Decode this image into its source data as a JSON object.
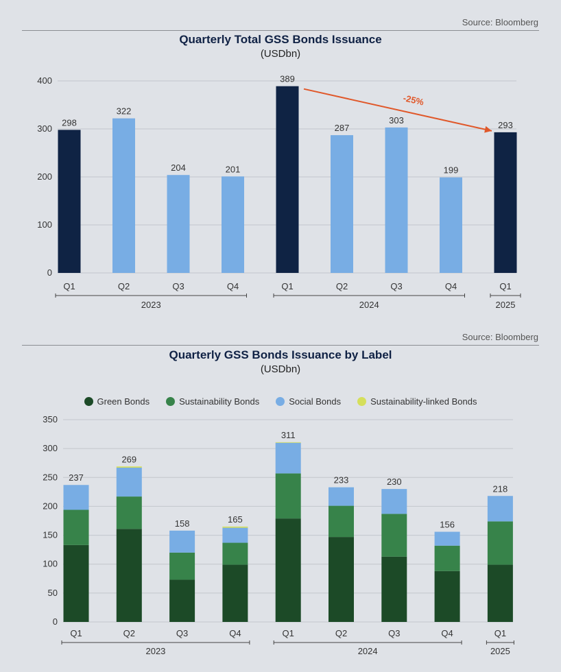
{
  "colors": {
    "navy": "#0f2344",
    "light_blue": "#78ade4",
    "dark_green": "#1c4a27",
    "mid_green": "#37834a",
    "social_blue": "#78ade4",
    "yellow": "#d5df5b",
    "arrow": "#e0582a",
    "grid": "#c3c6cc",
    "text": "#333333"
  },
  "chart1": {
    "source": "Source: Bloomberg",
    "title": "Quarterly Total GSS Bonds Issuance",
    "subtitle": "(USDbn)",
    "arrow_label": "-25%"
  },
  "chart2": {
    "source": "Source: Bloomberg",
    "title": "Quarterly GSS Bonds Issuance by Label",
    "subtitle": "(USDbn)",
    "legend": [
      {
        "label": "Green Bonds",
        "color": "#1c4a27"
      },
      {
        "label": "Sustainability Bonds",
        "color": "#37834a"
      },
      {
        "label": "Social Bonds",
        "color": "#78ade4"
      },
      {
        "label": "Sustainability-linked Bonds",
        "color": "#d5df5b"
      }
    ]
  },
  "chart_data": [
    {
      "type": "bar",
      "title": "Quarterly Total GSS Bonds Issuance",
      "subtitle": "(USDbn)",
      "categories": [
        "Q1",
        "Q2",
        "Q3",
        "Q4",
        "Q1",
        "Q2",
        "Q3",
        "Q4",
        "Q1"
      ],
      "groups": [
        {
          "label": "2023",
          "start": 0,
          "end": 3
        },
        {
          "label": "2024",
          "start": 4,
          "end": 7
        },
        {
          "label": "2025",
          "start": 8,
          "end": 8
        }
      ],
      "values": [
        298,
        322,
        204,
        201,
        389,
        287,
        303,
        199,
        293
      ],
      "highlight": [
        true,
        false,
        false,
        false,
        true,
        false,
        false,
        false,
        true
      ],
      "ylim": [
        0,
        400
      ],
      "yticks": [
        0,
        100,
        200,
        300,
        400
      ],
      "annotation": {
        "text": "-25%",
        "from_index": 4,
        "to_index": 8
      },
      "xlabel": "",
      "ylabel": ""
    },
    {
      "type": "stacked_bar",
      "title": "Quarterly GSS Bonds Issuance by Label",
      "subtitle": "(USDbn)",
      "categories": [
        "Q1",
        "Q2",
        "Q3",
        "Q4",
        "Q1",
        "Q2",
        "Q3",
        "Q4",
        "Q1"
      ],
      "groups": [
        {
          "label": "2023",
          "start": 0,
          "end": 3
        },
        {
          "label": "2024",
          "start": 4,
          "end": 7
        },
        {
          "label": "2025",
          "start": 8,
          "end": 8
        }
      ],
      "series": [
        {
          "name": "Green Bonds",
          "values": [
            133,
            161,
            73,
            99,
            179,
            147,
            113,
            88,
            99
          ]
        },
        {
          "name": "Sustainability Bonds",
          "values": [
            61,
            56,
            47,
            38,
            78,
            54,
            74,
            44,
            75
          ]
        },
        {
          "name": "Social Bonds",
          "values": [
            43,
            50,
            38,
            26,
            53,
            32,
            43,
            24,
            44
          ]
        },
        {
          "name": "Sustainability-linked Bonds",
          "values": [
            0,
            2,
            0,
            2,
            1,
            0,
            0,
            0,
            0
          ]
        }
      ],
      "totals": [
        237,
        269,
        158,
        165,
        311,
        233,
        230,
        156,
        218
      ],
      "ylim": [
        0,
        350
      ],
      "yticks": [
        0,
        50,
        100,
        150,
        200,
        250,
        300,
        350
      ],
      "xlabel": "",
      "ylabel": ""
    }
  ]
}
